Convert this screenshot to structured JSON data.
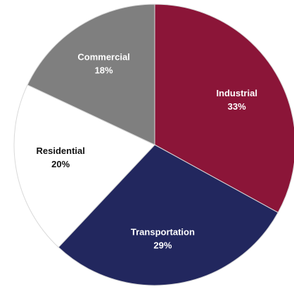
{
  "chart_data": {
    "type": "pie",
    "title": "",
    "legend": "none",
    "slices": [
      {
        "label": "Industrial",
        "value": 33,
        "value_label": "33%",
        "color": "#8B1538",
        "label_color": "#ffffff"
      },
      {
        "label": "Transportation",
        "value": 29,
        "value_label": "29%",
        "color": "#22275E",
        "label_color": "#ffffff"
      },
      {
        "label": "Residential",
        "value": 20,
        "value_label": "20%",
        "color": "#ffffff",
        "label_color": "#111111"
      },
      {
        "label": "Commercial",
        "value": 18,
        "value_label": "18%",
        "color": "#7F7F7F",
        "label_color": "#ffffff"
      }
    ]
  }
}
